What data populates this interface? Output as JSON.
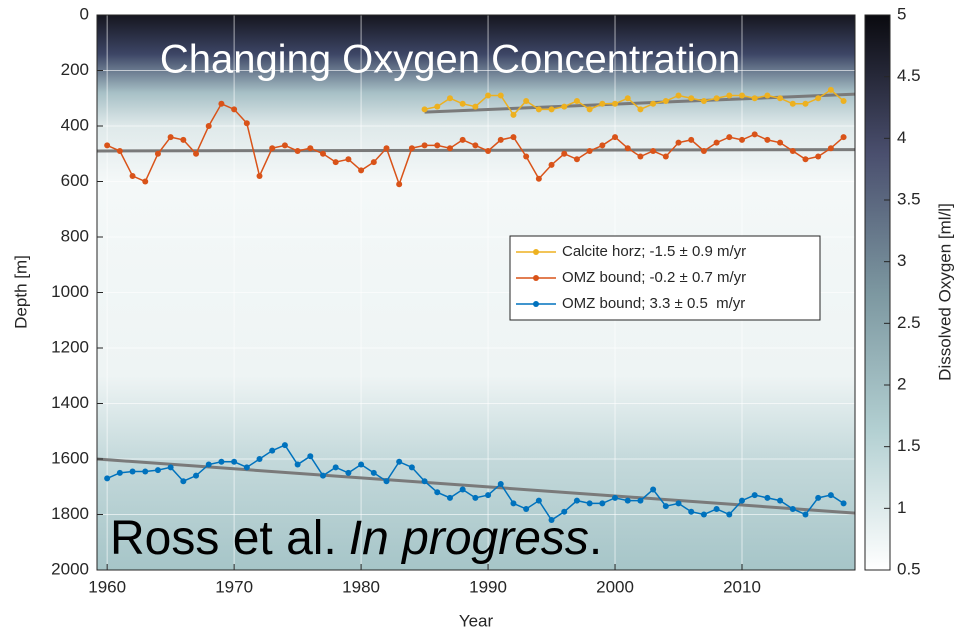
{
  "chart_data": {
    "type": "line",
    "title": "Changing Oxygen Concentration",
    "xlabel": "Year",
    "ylabel": "Depth [m]",
    "annotation_parts": [
      "Ross et al.",
      "In progress",
      "."
    ],
    "xlim": [
      1959.2,
      2018.9
    ],
    "xticks": [
      1960,
      1970,
      1980,
      1990,
      2000,
      2010
    ],
    "ylim": [
      0,
      2000
    ],
    "y_reversed": true,
    "yticks": [
      0,
      200,
      400,
      600,
      800,
      1000,
      1200,
      1400,
      1600,
      1800,
      2000
    ],
    "grid": true,
    "legend": "center-right",
    "series": [
      {
        "name": "Calcite horz; -1.5 ± 0.9 m/yr",
        "color": "#edb120",
        "x": [
          1985,
          1986,
          1987,
          1988,
          1989,
          1990,
          1991,
          1992,
          1993,
          1994,
          1995,
          1996,
          1997,
          1998,
          1999,
          2000,
          2001,
          2002,
          2003,
          2004,
          2005,
          2006,
          2007,
          2008,
          2009,
          2010,
          2011,
          2012,
          2013,
          2014,
          2015,
          2016,
          2017,
          2018
        ],
        "values": [
          340,
          330,
          300,
          320,
          330,
          290,
          290,
          360,
          310,
          340,
          340,
          330,
          310,
          340,
          320,
          320,
          300,
          340,
          320,
          310,
          290,
          300,
          310,
          300,
          290,
          290,
          300,
          290,
          300,
          320,
          320,
          300,
          270,
          310
        ]
      },
      {
        "name": "OMZ bound; -0.2 ± 0.7 m/yr",
        "color": "#d95319",
        "x": [
          1960,
          1961,
          1962,
          1963,
          1964,
          1965,
          1966,
          1967,
          1968,
          1969,
          1970,
          1971,
          1972,
          1973,
          1974,
          1975,
          1976,
          1977,
          1978,
          1979,
          1980,
          1981,
          1982,
          1983,
          1984,
          1985,
          1986,
          1987,
          1988,
          1989,
          1990,
          1991,
          1992,
          1993,
          1994,
          1995,
          1996,
          1997,
          1998,
          1999,
          2000,
          2001,
          2002,
          2003,
          2004,
          2005,
          2006,
          2007,
          2008,
          2009,
          2010,
          2011,
          2012,
          2013,
          2014,
          2015,
          2016,
          2017,
          2018
        ],
        "values": [
          470,
          490,
          580,
          600,
          500,
          440,
          450,
          500,
          400,
          320,
          340,
          390,
          580,
          480,
          470,
          490,
          480,
          500,
          530,
          520,
          560,
          530,
          480,
          610,
          480,
          470,
          470,
          480,
          450,
          470,
          490,
          450,
          440,
          510,
          590,
          540,
          500,
          520,
          490,
          470,
          440,
          480,
          510,
          490,
          510,
          460,
          450,
          490,
          460,
          440,
          450,
          430,
          450,
          460,
          490,
          520,
          510,
          480,
          440
        ]
      },
      {
        "name": "OMZ bound; 3.3 ± 0.5  m/yr",
        "color": "#0072bd",
        "x": [
          1960,
          1961,
          1962,
          1963,
          1964,
          1965,
          1966,
          1967,
          1968,
          1969,
          1970,
          1971,
          1972,
          1973,
          1974,
          1975,
          1976,
          1977,
          1978,
          1979,
          1980,
          1981,
          1982,
          1983,
          1984,
          1985,
          1986,
          1987,
          1988,
          1989,
          1990,
          1991,
          1992,
          1993,
          1994,
          1995,
          1996,
          1997,
          1998,
          1999,
          2000,
          2001,
          2002,
          2003,
          2004,
          2005,
          2006,
          2007,
          2008,
          2009,
          2010,
          2011,
          2012,
          2013,
          2014,
          2015,
          2016,
          2017,
          2018
        ],
        "values": [
          1670,
          1650,
          1645,
          1645,
          1640,
          1630,
          1680,
          1660,
          1620,
          1610,
          1610,
          1630,
          1600,
          1570,
          1550,
          1620,
          1590,
          1660,
          1630,
          1650,
          1620,
          1650,
          1680,
          1610,
          1630,
          1680,
          1720,
          1740,
          1710,
          1740,
          1730,
          1690,
          1760,
          1780,
          1750,
          1820,
          1790,
          1750,
          1760,
          1760,
          1740,
          1750,
          1750,
          1710,
          1770,
          1760,
          1790,
          1800,
          1780,
          1800,
          1750,
          1730,
          1740,
          1750,
          1780,
          1800,
          1740,
          1730,
          1760
        ]
      }
    ],
    "trend_lines": [
      {
        "color": "#7a7a7a",
        "x": [
          1985,
          2018.9
        ],
        "values": [
          350,
          285
        ]
      },
      {
        "color": "#7a7a7a",
        "x": [
          1959.2,
          2018.9
        ],
        "values": [
          490,
          485
        ]
      },
      {
        "color": "#7a7a7a",
        "x": [
          1959.2,
          2018.9
        ],
        "values": [
          1600,
          1795
        ]
      }
    ],
    "colorbar": {
      "label": "Dissolved Oxygen [ml/l]",
      "lim": [
        0.5,
        5
      ],
      "ticks": [
        0.5,
        1,
        1.5,
        2,
        2.5,
        3,
        3.5,
        4,
        4.5,
        5
      ]
    }
  }
}
